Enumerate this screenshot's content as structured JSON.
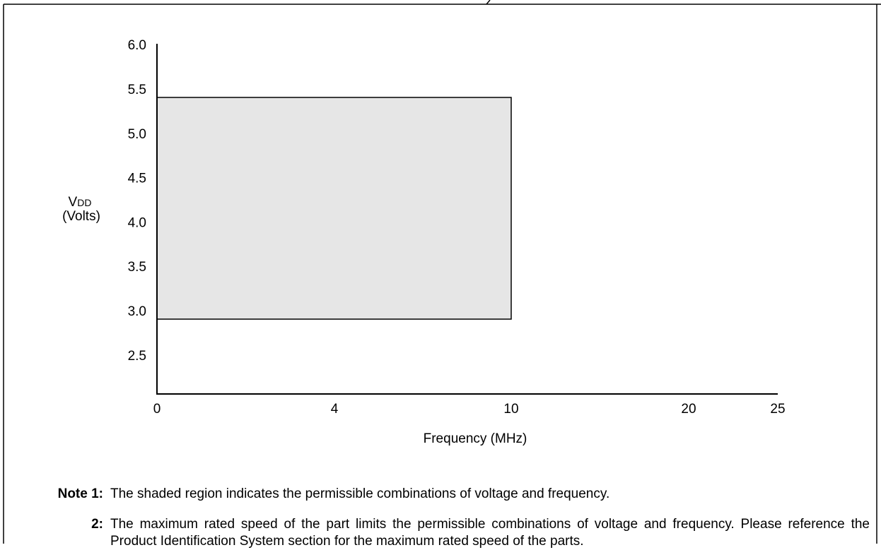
{
  "chart_data": {
    "type": "area",
    "title": "",
    "xlabel": "Frequency (MHz)",
    "ylabel_main": "V",
    "ylabel_sub": "DD",
    "ylabel_unit": "(Volts)",
    "x_ticks": [
      "0",
      "4",
      "10",
      "20",
      "25"
    ],
    "y_ticks": [
      "2.5",
      "3.0",
      "3.5",
      "4.0",
      "4.5",
      "5.0",
      "5.5",
      "6.0"
    ],
    "ylim": [
      2.25,
      6.0
    ],
    "shaded_region": {
      "x_from_tick": "0",
      "x_to_tick": "10",
      "y_min": 3.0,
      "y_max": 5.5
    },
    "colors": {
      "fill": "#e6e6e6",
      "stroke": "#000000"
    },
    "grid": false,
    "legend": "none"
  },
  "notes": [
    {
      "number": "Note 1:",
      "text": "The shaded region indicates the permissible combinations of voltage and frequency."
    },
    {
      "number": "2:",
      "text": "The maximum rated speed of the part limits the permissible combinations of voltage and frequency. Please reference the Product Identification System section for the maximum rated speed of the parts."
    }
  ]
}
